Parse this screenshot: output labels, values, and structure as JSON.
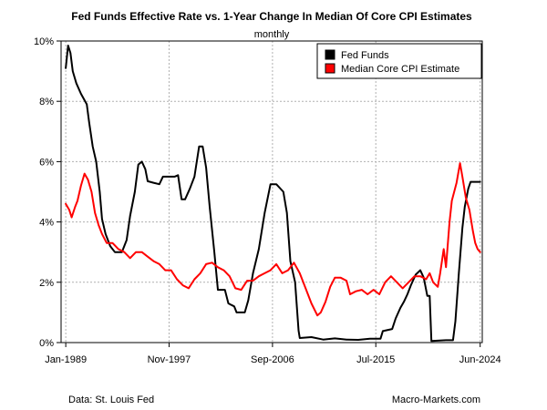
{
  "chart_data": {
    "type": "line",
    "title": "Fed Funds Effective Rate vs. 1-Year Change In Median Of Core CPI Estimates",
    "subtitle": "monthly",
    "xlabel": "",
    "ylabel": "",
    "x_tick_labels": [
      "Jan-1989",
      "Nov-1997",
      "Sep-2006",
      "Jul-2015",
      "Jun-2024"
    ],
    "x_tick_years": [
      1989.0,
      1997.83,
      2006.67,
      2015.5,
      2024.42
    ],
    "xlim": [
      1988.6,
      2024.6
    ],
    "ylim": [
      0,
      10
    ],
    "y_ticks": [
      0,
      2,
      4,
      6,
      8,
      10
    ],
    "y_tick_labels": [
      "0%",
      "2%",
      "4%",
      "6%",
      "8%",
      "10%"
    ],
    "grid": true,
    "legend_position": "top-right",
    "series": [
      {
        "name": "Fed Funds",
        "color": "#000000",
        "points": [
          [
            1989.0,
            9.1
          ],
          [
            1989.2,
            9.85
          ],
          [
            1989.4,
            9.6
          ],
          [
            1989.6,
            9.0
          ],
          [
            1989.9,
            8.6
          ],
          [
            1990.3,
            8.25
          ],
          [
            1990.8,
            7.9
          ],
          [
            1991.0,
            7.3
          ],
          [
            1991.3,
            6.5
          ],
          [
            1991.6,
            6.0
          ],
          [
            1991.9,
            5.0
          ],
          [
            1992.1,
            4.1
          ],
          [
            1992.4,
            3.6
          ],
          [
            1992.8,
            3.2
          ],
          [
            1993.2,
            3.0
          ],
          [
            1993.8,
            3.0
          ],
          [
            1994.2,
            3.4
          ],
          [
            1994.5,
            4.2
          ],
          [
            1994.9,
            5.0
          ],
          [
            1995.2,
            5.9
          ],
          [
            1995.5,
            6.0
          ],
          [
            1995.8,
            5.75
          ],
          [
            1996.0,
            5.35
          ],
          [
            1996.5,
            5.3
          ],
          [
            1997.0,
            5.25
          ],
          [
            1997.3,
            5.5
          ],
          [
            1997.8,
            5.5
          ],
          [
            1998.3,
            5.5
          ],
          [
            1998.6,
            5.55
          ],
          [
            1998.9,
            4.75
          ],
          [
            1999.2,
            4.75
          ],
          [
            1999.6,
            5.1
          ],
          [
            2000.0,
            5.5
          ],
          [
            2000.4,
            6.5
          ],
          [
            2000.7,
            6.5
          ],
          [
            2001.0,
            5.8
          ],
          [
            2001.3,
            4.5
          ],
          [
            2001.7,
            3.0
          ],
          [
            2002.0,
            1.75
          ],
          [
            2002.6,
            1.75
          ],
          [
            2002.9,
            1.3
          ],
          [
            2003.4,
            1.2
          ],
          [
            2003.6,
            1.0
          ],
          [
            2004.3,
            1.0
          ],
          [
            2004.6,
            1.4
          ],
          [
            2005.0,
            2.3
          ],
          [
            2005.5,
            3.1
          ],
          [
            2006.0,
            4.3
          ],
          [
            2006.5,
            5.25
          ],
          [
            2007.0,
            5.25
          ],
          [
            2007.6,
            5.0
          ],
          [
            2007.9,
            4.3
          ],
          [
            2008.2,
            2.7
          ],
          [
            2008.6,
            2.0
          ],
          [
            2008.9,
            0.4
          ],
          [
            2009.0,
            0.15
          ],
          [
            2010.0,
            0.18
          ],
          [
            2011.0,
            0.1
          ],
          [
            2012.0,
            0.14
          ],
          [
            2013.0,
            0.1
          ],
          [
            2014.0,
            0.09
          ],
          [
            2015.0,
            0.13
          ],
          [
            2015.9,
            0.13
          ],
          [
            2016.1,
            0.38
          ],
          [
            2016.9,
            0.45
          ],
          [
            2017.2,
            0.8
          ],
          [
            2017.6,
            1.15
          ],
          [
            2017.9,
            1.35
          ],
          [
            2018.2,
            1.6
          ],
          [
            2018.5,
            1.9
          ],
          [
            2018.9,
            2.25
          ],
          [
            2019.3,
            2.4
          ],
          [
            2019.6,
            2.15
          ],
          [
            2019.9,
            1.55
          ],
          [
            2020.1,
            1.55
          ],
          [
            2020.25,
            0.05
          ],
          [
            2021.5,
            0.08
          ],
          [
            2022.1,
            0.08
          ],
          [
            2022.3,
            0.7
          ],
          [
            2022.6,
            2.3
          ],
          [
            2022.9,
            3.8
          ],
          [
            2023.1,
            4.5
          ],
          [
            2023.4,
            5.1
          ],
          [
            2023.6,
            5.33
          ],
          [
            2024.42,
            5.33
          ]
        ]
      },
      {
        "name": "Median Core CPI Estimate",
        "color": "#ff0000",
        "points": [
          [
            1989.0,
            4.6
          ],
          [
            1989.3,
            4.4
          ],
          [
            1989.5,
            4.15
          ],
          [
            1989.8,
            4.5
          ],
          [
            1990.0,
            4.7
          ],
          [
            1990.3,
            5.2
          ],
          [
            1990.6,
            5.6
          ],
          [
            1990.9,
            5.4
          ],
          [
            1991.2,
            5.0
          ],
          [
            1991.5,
            4.3
          ],
          [
            1991.8,
            3.9
          ],
          [
            1992.1,
            3.6
          ],
          [
            1992.5,
            3.3
          ],
          [
            1993.0,
            3.3
          ],
          [
            1993.5,
            3.1
          ],
          [
            1994.0,
            3.0
          ],
          [
            1994.5,
            2.8
          ],
          [
            1995.0,
            3.0
          ],
          [
            1995.5,
            3.0
          ],
          [
            1996.0,
            2.85
          ],
          [
            1996.5,
            2.7
          ],
          [
            1997.0,
            2.6
          ],
          [
            1997.5,
            2.4
          ],
          [
            1998.0,
            2.4
          ],
          [
            1998.5,
            2.1
          ],
          [
            1999.0,
            1.9
          ],
          [
            1999.5,
            1.8
          ],
          [
            2000.0,
            2.1
          ],
          [
            2000.5,
            2.3
          ],
          [
            2001.0,
            2.6
          ],
          [
            2001.5,
            2.65
          ],
          [
            2002.0,
            2.5
          ],
          [
            2002.5,
            2.4
          ],
          [
            2003.0,
            2.2
          ],
          [
            2003.5,
            1.8
          ],
          [
            2004.0,
            1.75
          ],
          [
            2004.5,
            2.05
          ],
          [
            2005.0,
            2.05
          ],
          [
            2005.5,
            2.2
          ],
          [
            2006.0,
            2.3
          ],
          [
            2006.5,
            2.4
          ],
          [
            2007.0,
            2.6
          ],
          [
            2007.5,
            2.3
          ],
          [
            2008.0,
            2.4
          ],
          [
            2008.5,
            2.65
          ],
          [
            2009.0,
            2.3
          ],
          [
            2009.5,
            1.8
          ],
          [
            2010.0,
            1.3
          ],
          [
            2010.5,
            0.9
          ],
          [
            2010.8,
            1.0
          ],
          [
            2011.2,
            1.35
          ],
          [
            2011.6,
            1.85
          ],
          [
            2012.0,
            2.15
          ],
          [
            2012.5,
            2.15
          ],
          [
            2013.0,
            2.05
          ],
          [
            2013.3,
            1.6
          ],
          [
            2013.8,
            1.7
          ],
          [
            2014.3,
            1.75
          ],
          [
            2014.8,
            1.6
          ],
          [
            2015.3,
            1.75
          ],
          [
            2015.8,
            1.6
          ],
          [
            2016.3,
            2.0
          ],
          [
            2016.8,
            2.2
          ],
          [
            2017.3,
            2.0
          ],
          [
            2017.8,
            1.8
          ],
          [
            2018.3,
            2.0
          ],
          [
            2018.8,
            2.2
          ],
          [
            2019.3,
            2.2
          ],
          [
            2019.8,
            2.1
          ],
          [
            2020.1,
            2.3
          ],
          [
            2020.4,
            2.0
          ],
          [
            2020.8,
            1.85
          ],
          [
            2021.0,
            2.3
          ],
          [
            2021.3,
            3.1
          ],
          [
            2021.5,
            2.5
          ],
          [
            2021.8,
            4.0
          ],
          [
            2022.0,
            4.7
          ],
          [
            2022.4,
            5.3
          ],
          [
            2022.7,
            5.95
          ],
          [
            2022.9,
            5.5
          ],
          [
            2023.2,
            4.8
          ],
          [
            2023.5,
            4.4
          ],
          [
            2023.8,
            3.7
          ],
          [
            2024.0,
            3.3
          ],
          [
            2024.2,
            3.1
          ],
          [
            2024.42,
            3.0
          ]
        ]
      }
    ],
    "source": "Data: St. Louis Fed",
    "credit": "Macro-Markets.com"
  }
}
